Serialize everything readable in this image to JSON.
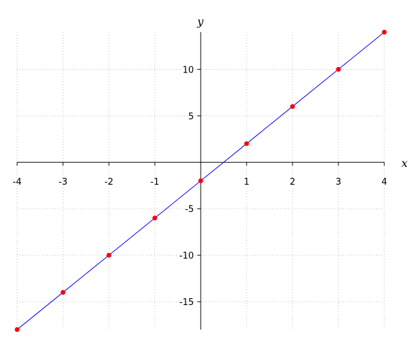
{
  "chart_data": {
    "type": "line",
    "title": "",
    "xlabel": "x",
    "ylabel": "y",
    "xlim": [
      -4,
      4
    ],
    "ylim": [
      -18,
      14
    ],
    "grid": true,
    "x_ticks": [
      -4,
      -3,
      -2,
      -1,
      1,
      2,
      3,
      4
    ],
    "y_ticks": [
      -15,
      -10,
      -5,
      5,
      10
    ],
    "series": [
      {
        "x": [
          -4,
          -3,
          -2,
          -1,
          0,
          1,
          2,
          3,
          4
        ],
        "y": [
          -18,
          -14,
          -10,
          -6,
          -2,
          2,
          6,
          10,
          14
        ],
        "line_color": "#0000ff",
        "marker_color": "#ff0000"
      }
    ]
  }
}
